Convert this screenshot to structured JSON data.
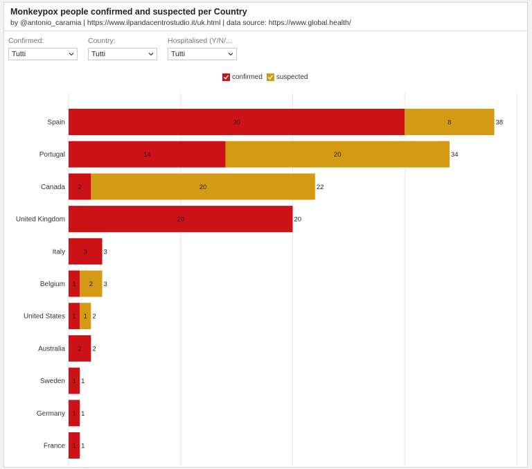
{
  "header": {
    "title": "Monkeypox people confirmed and suspected per Country",
    "subtitle": "by @antonio_caramia | https://www.ilpandacentrostudio.it/uk.html | data source: https://www.global.health/"
  },
  "filters": [
    {
      "label": "Confirmed:",
      "value": "Tutti"
    },
    {
      "label": "Country:",
      "value": "Tutti"
    },
    {
      "label": "Hospitalised (Y/N/...",
      "value": "Tutti"
    }
  ],
  "colors": {
    "confirmed": "#cc1117",
    "suspected": "#d49a14",
    "grid": "#e6e6e6"
  },
  "icons": {
    "dropdown": "chevron-down-icon",
    "legend_check": "check-icon"
  },
  "chart_data": {
    "type": "bar",
    "orientation": "horizontal",
    "stacked": true,
    "categories": [
      "Spain",
      "Portugal",
      "Canada",
      "United Kingdom",
      "Italy",
      "Belgium",
      "United States",
      "Australia",
      "Sweden",
      "Germany",
      "France"
    ],
    "series": [
      {
        "name": "confirmed",
        "values": [
          30,
          14,
          2,
          20,
          3,
          1,
          1,
          2,
          1,
          1,
          1
        ]
      },
      {
        "name": "suspected",
        "values": [
          8,
          20,
          20,
          0,
          0,
          2,
          1,
          0,
          0,
          0,
          0
        ]
      }
    ],
    "totals": [
      38,
      34,
      22,
      20,
      3,
      3,
      2,
      2,
      1,
      1,
      1
    ],
    "xlim": [
      0,
      40
    ],
    "grid": true,
    "legend": "top-center"
  }
}
